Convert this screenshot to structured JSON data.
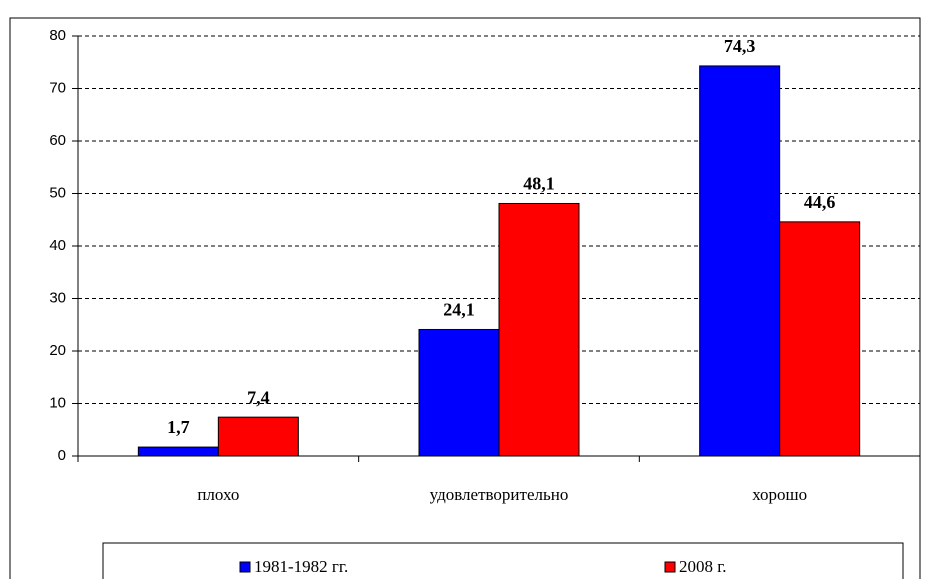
{
  "chart_data": {
    "type": "bar",
    "categories": [
      "плохо",
      "удовлетворительно",
      "хорошо"
    ],
    "series": [
      {
        "name": "1981-1982 гг.",
        "color": "#0000ff",
        "values": [
          1.7,
          24.1,
          74.3
        ],
        "value_labels": [
          "1,7",
          "24,1",
          "74,3"
        ]
      },
      {
        "name": "2008 г.",
        "color": "#ff0000",
        "values": [
          7.4,
          48.1,
          44.6
        ],
        "value_labels": [
          "7,4",
          "48,1",
          "44,6"
        ]
      }
    ],
    "ylim": [
      0,
      80
    ],
    "yticks": [
      0,
      10,
      20,
      30,
      40,
      50,
      60,
      70,
      80
    ],
    "grid": true,
    "legend": "bottom"
  }
}
